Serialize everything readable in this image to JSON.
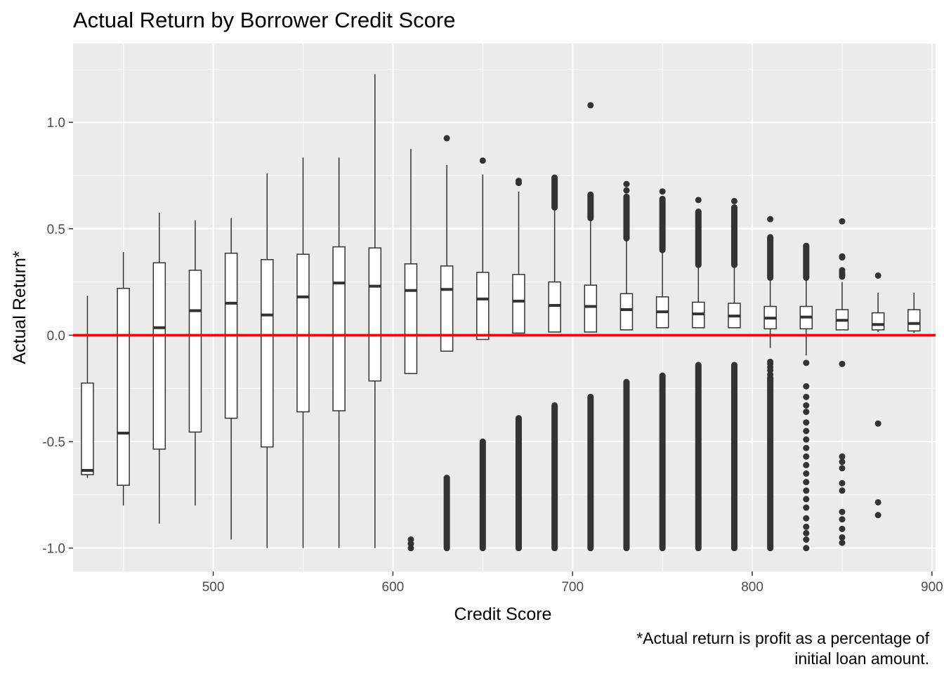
{
  "chart_data": {
    "type": "boxplot",
    "title": "Actual Return by Borrower Credit Score",
    "xlabel": "Credit Score",
    "ylabel": "Actual Return*",
    "caption_lines": [
      "*Actual return is profit as a percentage of",
      "initial loan amount."
    ],
    "xlim": [
      422,
      902
    ],
    "ylim": [
      -1.11,
      1.37
    ],
    "x_ticks": [
      500,
      600,
      700,
      800,
      900
    ],
    "x_tick_labels": [
      "500",
      "600",
      "700",
      "800",
      "900"
    ],
    "y_ticks": [
      -1.0,
      -0.5,
      0.0,
      0.5,
      1.0
    ],
    "y_tick_labels": [
      "-1.0",
      "-0.5",
      "0.0",
      "0.5",
      "1.0"
    ],
    "grid": true,
    "reference_line": {
      "y": 0.0,
      "color": "#ff0000"
    },
    "colors": {
      "panel": "#ebebeb",
      "grid": "#ffffff",
      "box": "#333333",
      "box_fill": "#ffffff",
      "outlier": "#333333"
    },
    "boxes": [
      {
        "x": 430,
        "whisker_low": -0.67,
        "q1": -0.655,
        "median": -0.635,
        "q3": -0.225,
        "whisker_high": 0.185,
        "outliers": []
      },
      {
        "x": 450,
        "whisker_low": -0.8,
        "q1": -0.705,
        "median": -0.46,
        "q3": 0.22,
        "whisker_high": 0.39,
        "outliers": []
      },
      {
        "x": 470,
        "whisker_low": -0.885,
        "q1": -0.535,
        "median": 0.035,
        "q3": 0.34,
        "whisker_high": 0.575,
        "outliers": []
      },
      {
        "x": 490,
        "whisker_low": -0.8,
        "q1": -0.455,
        "median": 0.115,
        "q3": 0.305,
        "whisker_high": 0.54,
        "outliers": []
      },
      {
        "x": 510,
        "whisker_low": -0.96,
        "q1": -0.39,
        "median": 0.15,
        "q3": 0.385,
        "whisker_high": 0.55,
        "outliers": []
      },
      {
        "x": 530,
        "whisker_low": -1.0,
        "q1": -0.525,
        "median": 0.095,
        "q3": 0.355,
        "whisker_high": 0.76,
        "outliers": []
      },
      {
        "x": 550,
        "whisker_low": -1.0,
        "q1": -0.36,
        "median": 0.18,
        "q3": 0.38,
        "whisker_high": 0.835,
        "outliers": []
      },
      {
        "x": 570,
        "whisker_low": -1.0,
        "q1": -0.355,
        "median": 0.245,
        "q3": 0.415,
        "whisker_high": 0.835,
        "outliers": []
      },
      {
        "x": 590,
        "whisker_low": -1.0,
        "q1": -0.215,
        "median": 0.23,
        "q3": 0.41,
        "whisker_high": 1.225,
        "outliers": []
      },
      {
        "x": 610,
        "whisker_low": -0.18,
        "q1": -0.18,
        "median": 0.21,
        "q3": 0.335,
        "whisker_high": 0.875,
        "outliers": [
          -0.96,
          -0.98,
          -1.0
        ]
      },
      {
        "x": 630,
        "whisker_low": -0.075,
        "q1": -0.075,
        "median": 0.215,
        "q3": 0.325,
        "whisker_high": 0.8,
        "outliers": [
          0.925
        ],
        "outlier_band": [
          -0.67,
          -1.0
        ]
      },
      {
        "x": 650,
        "whisker_low": -0.02,
        "q1": -0.02,
        "median": 0.17,
        "q3": 0.295,
        "whisker_high": 0.755,
        "outliers": [
          0.82
        ],
        "outlier_band": [
          -0.5,
          -1.0
        ]
      },
      {
        "x": 670,
        "whisker_low": 0.01,
        "q1": 0.01,
        "median": 0.16,
        "q3": 0.285,
        "whisker_high": 0.675,
        "outliers": [
          0.715,
          0.725
        ],
        "outlier_band": [
          -0.39,
          -1.0
        ]
      },
      {
        "x": 690,
        "whisker_low": 0.015,
        "q1": 0.015,
        "median": 0.14,
        "q3": 0.25,
        "whisker_high": 0.59,
        "outliers": [],
        "upper_band": [
          0.6,
          0.74
        ],
        "outlier_band": [
          -0.33,
          -1.0
        ]
      },
      {
        "x": 710,
        "whisker_low": 0.015,
        "q1": 0.015,
        "median": 0.135,
        "q3": 0.235,
        "whisker_high": 0.545,
        "outliers": [
          1.08
        ],
        "upper_band": [
          0.55,
          0.66
        ],
        "outlier_band": [
          -0.29,
          -1.0
        ]
      },
      {
        "x": 730,
        "whisker_low": 0.025,
        "q1": 0.025,
        "median": 0.12,
        "q3": 0.195,
        "whisker_high": 0.445,
        "outliers": [
          0.68,
          0.71
        ],
        "upper_band": [
          0.455,
          0.65
        ],
        "outlier_band": [
          -0.22,
          -1.0
        ]
      },
      {
        "x": 750,
        "whisker_low": 0.035,
        "q1": 0.035,
        "median": 0.11,
        "q3": 0.18,
        "whisker_high": 0.39,
        "outliers": [
          0.675
        ],
        "upper_band": [
          0.4,
          0.64
        ],
        "outlier_band": [
          -0.19,
          -1.0
        ]
      },
      {
        "x": 770,
        "whisker_low": 0.035,
        "q1": 0.035,
        "median": 0.1,
        "q3": 0.155,
        "whisker_high": 0.32,
        "outliers": [
          0.635
        ],
        "upper_band": [
          0.33,
          0.58
        ],
        "outlier_band": [
          -0.14,
          -1.0
        ]
      },
      {
        "x": 790,
        "whisker_low": 0.035,
        "q1": 0.035,
        "median": 0.09,
        "q3": 0.15,
        "whisker_high": 0.32,
        "outliers": [
          0.63
        ],
        "upper_band": [
          0.33,
          0.6
        ],
        "outlier_band": [
          -0.14,
          -1.0
        ]
      },
      {
        "x": 810,
        "whisker_low": -0.06,
        "q1": 0.03,
        "median": 0.08,
        "q3": 0.135,
        "whisker_high": 0.265,
        "outliers": [
          0.545,
          -0.125,
          -0.135,
          -0.15,
          -0.165,
          -0.185
        ],
        "upper_band": [
          0.27,
          0.46
        ],
        "outlier_band": [
          -0.2,
          -1.0
        ]
      },
      {
        "x": 830,
        "whisker_low": -0.095,
        "q1": 0.03,
        "median": 0.085,
        "q3": 0.135,
        "whisker_high": 0.26,
        "outliers": [
          -0.13,
          -0.24,
          -0.29,
          -0.33,
          -0.36,
          -0.41,
          -0.45,
          -0.49,
          -0.53,
          -0.57,
          -0.61,
          -0.65,
          -0.69,
          -0.73,
          -0.77,
          -0.81,
          -0.86,
          -0.9,
          -0.93,
          -0.96,
          -1.0
        ],
        "upper_band": [
          0.27,
          0.42
        ]
      },
      {
        "x": 850,
        "whisker_low": 0.025,
        "q1": 0.025,
        "median": 0.07,
        "q3": 0.12,
        "whisker_high": 0.25,
        "outliers": [
          0.535,
          0.37,
          0.365,
          0.305,
          0.295,
          0.285,
          0.275,
          -0.135,
          -0.57,
          -0.595,
          -0.625,
          -0.695,
          -0.73,
          -0.83,
          -0.865,
          -0.91,
          -0.95,
          -0.975
        ]
      },
      {
        "x": 870,
        "whisker_low": 0.015,
        "q1": 0.025,
        "median": 0.05,
        "q3": 0.105,
        "whisker_high": 0.2,
        "outliers": [
          0.28,
          -0.415,
          -0.785,
          -0.845
        ]
      },
      {
        "x": 890,
        "whisker_low": 0.01,
        "q1": 0.02,
        "median": 0.055,
        "q3": 0.12,
        "whisker_high": 0.2,
        "outliers": []
      }
    ]
  }
}
